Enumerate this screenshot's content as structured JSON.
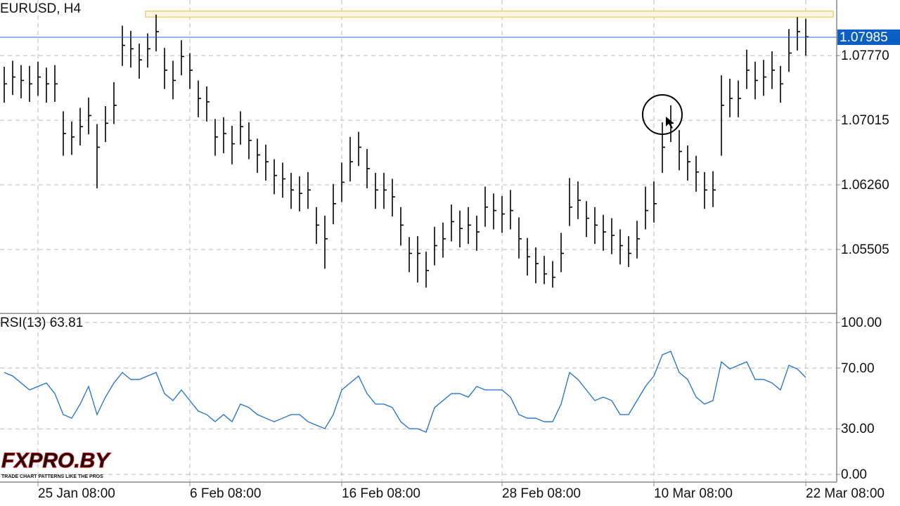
{
  "chart_data": [
    {
      "type": "ohlc",
      "title": "EURUSD, H4",
      "color": "#000000",
      "grid": true,
      "ylim": [
        1.04766,
        1.0842
      ],
      "yticks": [
        1.05505,
        {
          "value": 1.0626,
          "label": "1.06260"
        },
        1.07015,
        {
          "value": 1.0777,
          "label": "1.07770"
        }
      ],
      "current_price": 1.07985,
      "zone": [
        1.0822,
        1.0829
      ],
      "high": [
        1.0764,
        1.0771,
        1.0766,
        1.0765,
        1.077,
        1.0763,
        1.0766,
        1.0712,
        1.07,
        1.0716,
        1.0728,
        1.0697,
        1.0718,
        1.0746,
        1.0812,
        1.0806,
        1.0791,
        1.0803,
        1.0825,
        1.0786,
        1.0771,
        1.0795,
        1.078,
        1.0748,
        1.0741,
        1.0703,
        1.0705,
        1.0695,
        1.0712,
        1.0699,
        1.068,
        1.0673,
        1.0656,
        1.0652,
        1.064,
        1.0636,
        1.0641,
        1.06,
        1.059,
        1.0627,
        1.0652,
        1.0682,
        1.0688,
        1.0668,
        1.064,
        1.064,
        1.0633,
        1.06,
        1.0565,
        1.0566,
        1.0548,
        1.0577,
        1.0582,
        1.0603,
        1.0596,
        1.06,
        1.059,
        1.0624,
        1.0616,
        1.0613,
        1.062,
        1.0588,
        1.0564,
        1.0553,
        1.0543,
        1.0537,
        1.057,
        1.0634,
        1.063,
        1.0607,
        1.06,
        1.0591,
        1.0587,
        1.0574,
        1.0566,
        1.0584,
        1.0624,
        1.063,
        1.0699,
        1.0719,
        1.069,
        1.0672,
        1.066,
        1.0641,
        1.0642,
        1.0754,
        1.075,
        1.0748,
        1.0784,
        1.077,
        1.0772,
        1.0782,
        1.0765,
        1.0808,
        1.0822,
        1.082
      ],
      "low": [
        1.0722,
        1.0731,
        1.0727,
        1.0723,
        1.073,
        1.0722,
        1.0723,
        1.066,
        1.0661,
        1.0672,
        1.0685,
        1.0622,
        1.0676,
        1.0697,
        1.0765,
        1.0763,
        1.075,
        1.0763,
        1.0782,
        1.0738,
        1.0726,
        1.0754,
        1.0738,
        1.0705,
        1.07,
        1.066,
        1.0663,
        1.065,
        1.0673,
        1.0656,
        1.064,
        1.0631,
        1.0615,
        1.0611,
        1.0598,
        1.0595,
        1.0598,
        1.0557,
        1.0528,
        1.058,
        1.0606,
        1.063,
        1.0648,
        1.0622,
        1.0598,
        1.0598,
        1.0589,
        1.0555,
        1.0524,
        1.0512,
        1.0506,
        1.0532,
        1.0541,
        1.056,
        1.0553,
        1.0557,
        1.0549,
        1.0577,
        1.0574,
        1.057,
        1.0574,
        1.054,
        1.052,
        1.0511,
        1.051,
        1.0506,
        1.0524,
        1.0578,
        1.0586,
        1.0565,
        1.0557,
        1.0549,
        1.0545,
        1.0533,
        1.053,
        1.054,
        1.0574,
        1.0582,
        1.064,
        1.0676,
        1.0643,
        1.0631,
        1.0618,
        1.0598,
        1.06,
        1.066,
        1.0705,
        1.0705,
        1.0738,
        1.0726,
        1.073,
        1.0738,
        1.0722,
        1.0758,
        1.0783,
        1.0777
      ],
      "close": [
        1.0744,
        1.0752,
        1.0748,
        1.0744,
        1.0752,
        1.0744,
        1.0744,
        1.0686,
        1.0682,
        1.0694,
        1.0707,
        1.067,
        1.0698,
        1.0719,
        1.0789,
        1.0785,
        1.0772,
        1.0785,
        1.0805,
        1.076,
        1.0748,
        1.0776,
        1.076,
        1.0727,
        1.0723,
        1.0682,
        1.0686,
        1.0674,
        1.0694,
        1.0678,
        1.0661,
        1.0653,
        1.0637,
        1.0633,
        1.062,
        1.0616,
        1.062,
        1.0579,
        1.0563,
        1.0604,
        1.0629,
        1.0653,
        1.067,
        1.0645,
        1.062,
        1.062,
        1.0612,
        1.0579,
        1.0546,
        1.0546,
        1.0526,
        1.0555,
        1.0563,
        1.0583,
        1.0575,
        1.0579,
        1.0571,
        1.06,
        1.0596,
        1.0592,
        1.0596,
        1.0563,
        1.0542,
        1.0534,
        1.0522,
        1.0518,
        1.0546,
        1.06,
        1.0608,
        1.0587,
        1.0579,
        1.0571,
        1.0567,
        1.0555,
        1.0546,
        1.0563,
        1.0596,
        1.0604,
        1.067,
        1.0698,
        1.0665,
        1.0653,
        1.0641,
        1.062,
        1.062,
        1.0719,
        1.0727,
        1.0727,
        1.076,
        1.0748,
        1.0752,
        1.076,
        1.0744,
        1.078,
        1.0805,
        1.0799
      ]
    },
    {
      "type": "line",
      "title": "RSI(13) 63.81",
      "color": "#1e6fd0",
      "grid": true,
      "ylim": [
        -4.6,
        105.5
      ],
      "yticks": [
        {
          "value": 0,
          "label": "0.00"
        },
        {
          "value": 30,
          "label": "30.00"
        },
        {
          "value": 70,
          "label": "70.00"
        },
        {
          "value": 100,
          "label": "100.00"
        }
      ],
      "xticks": [
        {
          "value": 4,
          "label": "25 Jan 08:00"
        },
        {
          "value": 22,
          "label": "6 Feb 08:00"
        },
        {
          "value": 40,
          "label": "16 Feb 08:00"
        },
        {
          "value": 59,
          "label": "28 Feb 08:00"
        },
        {
          "value": 77,
          "label": "10 Mar 08:00"
        },
        {
          "value": 95,
          "label": "22 Mar 08:00"
        }
      ],
      "values": [
        67.1,
        64.8,
        60.2,
        55.6,
        57.9,
        60.2,
        53.2,
        39.4,
        37.0,
        46.3,
        57.9,
        39.4,
        50.9,
        60.2,
        67.1,
        62.5,
        62.5,
        64.8,
        67.1,
        53.2,
        48.6,
        55.6,
        48.6,
        41.7,
        39.4,
        34.7,
        39.4,
        34.7,
        46.3,
        44.0,
        39.4,
        37.0,
        34.7,
        37.0,
        39.4,
        39.4,
        34.7,
        32.4,
        30.1,
        39.4,
        55.6,
        60.2,
        64.8,
        53.2,
        46.3,
        46.3,
        44.0,
        34.7,
        30.1,
        30.1,
        27.8,
        44.0,
        48.6,
        53.2,
        53.2,
        50.9,
        57.9,
        55.6,
        55.6,
        55.6,
        50.9,
        39.4,
        37.0,
        37.0,
        34.7,
        34.7,
        46.3,
        67.1,
        62.5,
        55.6,
        48.6,
        50.9,
        48.6,
        39.4,
        39.4,
        48.6,
        57.9,
        64.8,
        78.7,
        81.0,
        67.1,
        62.5,
        50.9,
        46.3,
        48.6,
        74.1,
        69.4,
        71.8,
        74.1,
        62.5,
        62.5,
        60.2,
        55.6,
        71.8,
        69.4,
        63.81
      ]
    }
  ],
  "watermark": {
    "brand": "FXPRO.BY",
    "tagline": "TRADE CHART PATTERNS LIKE THE PROS"
  }
}
